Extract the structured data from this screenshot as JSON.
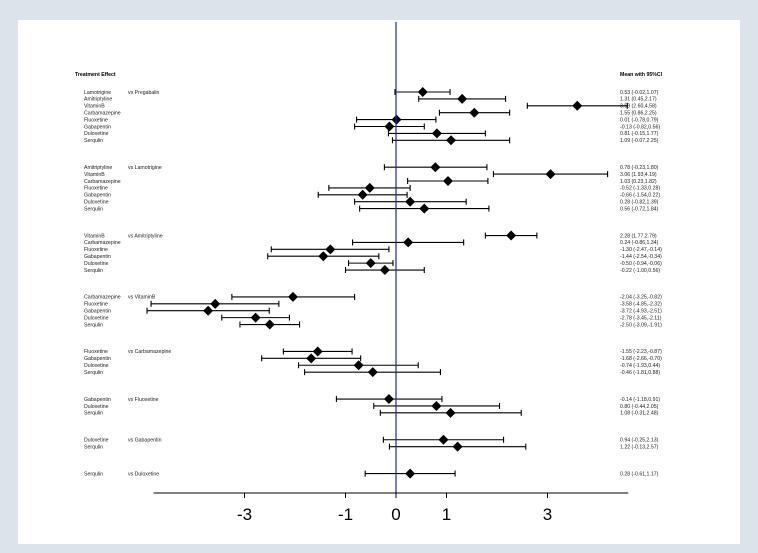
{
  "chart_data": {
    "type": "forest",
    "title": "",
    "header_left": "Treatment Effect",
    "header_right": "Mean with 95%CI",
    "xlim": [
      -4.8,
      4.6
    ],
    "xticks": [
      -3,
      -1,
      0,
      1,
      3
    ],
    "xtick_labels": [
      "-3",
      "-1",
      "0",
      "1",
      "3"
    ],
    "reference_line": 0,
    "groups": [
      {
        "comparator": "vs Pregabalin",
        "rows": [
          {
            "drug": "Lamotrigine",
            "mean": 0.53,
            "lower": -0.02,
            "upper": 1.07,
            "ci_text": "0.53 (-0.02,1.07)"
          },
          {
            "drug": "Amitriptyline",
            "mean": 1.31,
            "lower": 0.45,
            "upper": 2.17,
            "ci_text": "1.31 (0.45,2.17)"
          },
          {
            "drug": "VitaminB",
            "mean": 3.59,
            "lower": 2.6,
            "upper": 4.58,
            "ci_text": "3.59 (2.60,4.58)"
          },
          {
            "drug": "Carbamazepine",
            "mean": 1.55,
            "lower": 0.86,
            "upper": 2.25,
            "ci_text": "1.55 (0.86,2.25)"
          },
          {
            "drug": "Fluoxetine",
            "mean": 0.01,
            "lower": -0.78,
            "upper": 0.79,
            "ci_text": "0.01 (-0.78,0.79)"
          },
          {
            "drug": "Gabapentin",
            "mean": -0.13,
            "lower": -0.82,
            "upper": 0.56,
            "ci_text": "-0.13 (-0.82,0.56)"
          },
          {
            "drug": "Duloxetine",
            "mean": 0.81,
            "lower": -0.15,
            "upper": 1.77,
            "ci_text": "0.81 (-0.15,1.77)"
          },
          {
            "drug": "Serqulin",
            "mean": 1.09,
            "lower": -0.07,
            "upper": 2.25,
            "ci_text": "1.09 (-0.07,2.25)"
          }
        ]
      },
      {
        "comparator": "vs Lamotrigine",
        "rows": [
          {
            "drug": "Amitriptyline",
            "mean": 0.78,
            "lower": -0.23,
            "upper": 1.8,
            "ci_text": "0.78 (-0.23,1.80)"
          },
          {
            "drug": "VitaminB",
            "mean": 3.06,
            "lower": 1.93,
            "upper": 4.19,
            "ci_text": "3.06 (1.93,4.19)"
          },
          {
            "drug": "Carbamazepine",
            "mean": 1.03,
            "lower": 0.23,
            "upper": 1.82,
            "ci_text": "1.03 (0.23,1.82)"
          },
          {
            "drug": "Fluoxetine",
            "mean": -0.52,
            "lower": -1.33,
            "upper": 0.28,
            "ci_text": "-0.52 (-1.33,0.28)"
          },
          {
            "drug": "Gabapentin",
            "mean": -0.66,
            "lower": -1.54,
            "upper": 0.22,
            "ci_text": "-0.66 (-1.54,0.22)"
          },
          {
            "drug": "Duloxetine",
            "mean": 0.28,
            "lower": -0.82,
            "upper": 1.39,
            "ci_text": "0.28 (-0.82,1.39)"
          },
          {
            "drug": "Serqulin",
            "mean": 0.56,
            "lower": -0.72,
            "upper": 1.84,
            "ci_text": "0.56 (-0.72,1.84)"
          }
        ]
      },
      {
        "comparator": "vs Amitriptyline",
        "rows": [
          {
            "drug": "VitaminB",
            "mean": 2.28,
            "lower": 1.77,
            "upper": 2.79,
            "ci_text": "2.28 (1.77,2.79)"
          },
          {
            "drug": "Carbamazepine",
            "mean": 0.24,
            "lower": -0.86,
            "upper": 1.34,
            "ci_text": "0.24 (-0.86,1.34)"
          },
          {
            "drug": "Fluoxetine",
            "mean": -1.3,
            "lower": -2.47,
            "upper": -0.14,
            "ci_text": "-1.30 (-2.47,-0.14)"
          },
          {
            "drug": "Gabapentin",
            "mean": -1.44,
            "lower": -2.54,
            "upper": -0.34,
            "ci_text": "-1.44 (-2.54,-0.34)"
          },
          {
            "drug": "Duloxetine",
            "mean": -0.5,
            "lower": -0.94,
            "upper": -0.06,
            "ci_text": "-0.50 (-0.94,-0.06)"
          },
          {
            "drug": "Serqulin",
            "mean": -0.22,
            "lower": -1.0,
            "upper": 0.56,
            "ci_text": "-0.22 (-1.00,0.56)"
          }
        ]
      },
      {
        "comparator": "vs VitaminB",
        "rows": [
          {
            "drug": "Carbamazepine",
            "mean": -2.04,
            "lower": -3.25,
            "upper": -0.82,
            "ci_text": "-2.04 (-3.25,-0.82)"
          },
          {
            "drug": "Fluoxetine",
            "mean": -3.58,
            "lower": -4.85,
            "upper": -2.32,
            "ci_text": "-3.58 (-4.85,-2.32)"
          },
          {
            "drug": "Gabapentin",
            "mean": -3.72,
            "lower": -4.93,
            "upper": -2.51,
            "ci_text": "-3.72 (-4.93,-2.51)"
          },
          {
            "drug": "Duloxetine",
            "mean": -2.78,
            "lower": -3.45,
            "upper": -2.11,
            "ci_text": "-2.78 (-3.45,-2.11)"
          },
          {
            "drug": "Serqulin",
            "mean": -2.5,
            "lower": -3.09,
            "upper": -1.91,
            "ci_text": "-2.50 (-3.09,-1.91)"
          }
        ]
      },
      {
        "comparator": "vs Carbamazepine",
        "rows": [
          {
            "drug": "Fluoxetine",
            "mean": -1.55,
            "lower": -2.23,
            "upper": -0.87,
            "ci_text": "-1.55 (-2.23,-0.87)"
          },
          {
            "drug": "Gabapentin",
            "mean": -1.68,
            "lower": -2.66,
            "upper": -0.7,
            "ci_text": "-1.68 (-2.66,-0.70)"
          },
          {
            "drug": "Duloxetine",
            "mean": -0.74,
            "lower": -1.93,
            "upper": 0.44,
            "ci_text": "-0.74 (-1.93,0.44)"
          },
          {
            "drug": "Serqulin",
            "mean": -0.46,
            "lower": -1.81,
            "upper": 0.88,
            "ci_text": "-0.46 (-1.81,0.88)"
          }
        ]
      },
      {
        "comparator": "vs Fluoxetine",
        "rows": [
          {
            "drug": "Gabapentin",
            "mean": -0.14,
            "lower": -1.18,
            "upper": 0.91,
            "ci_text": "-0.14 (-1.18,0.91)"
          },
          {
            "drug": "Duloxetine",
            "mean": 0.8,
            "lower": -0.44,
            "upper": 2.05,
            "ci_text": "0.80 (-0.44,2.05)"
          },
          {
            "drug": "Serqulin",
            "mean": 1.08,
            "lower": -0.31,
            "upper": 2.48,
            "ci_text": "1.08 (-0.31,2.48)"
          }
        ]
      },
      {
        "comparator": "vs Gabapentin",
        "rows": [
          {
            "drug": "Duloxetine",
            "mean": 0.94,
            "lower": -0.25,
            "upper": 2.13,
            "ci_text": "0.94 (-0.25,2.13)"
          },
          {
            "drug": "Serqulin",
            "mean": 1.22,
            "lower": -0.13,
            "upper": 2.57,
            "ci_text": "1.22 (-0.13,2.57)"
          }
        ]
      },
      {
        "comparator": "vs Duloxetine",
        "rows": [
          {
            "drug": "Serqulin",
            "mean": 0.28,
            "lower": -0.61,
            "upper": 1.17,
            "ci_text": "0.28 (-0.61,1.17)"
          }
        ]
      }
    ]
  }
}
